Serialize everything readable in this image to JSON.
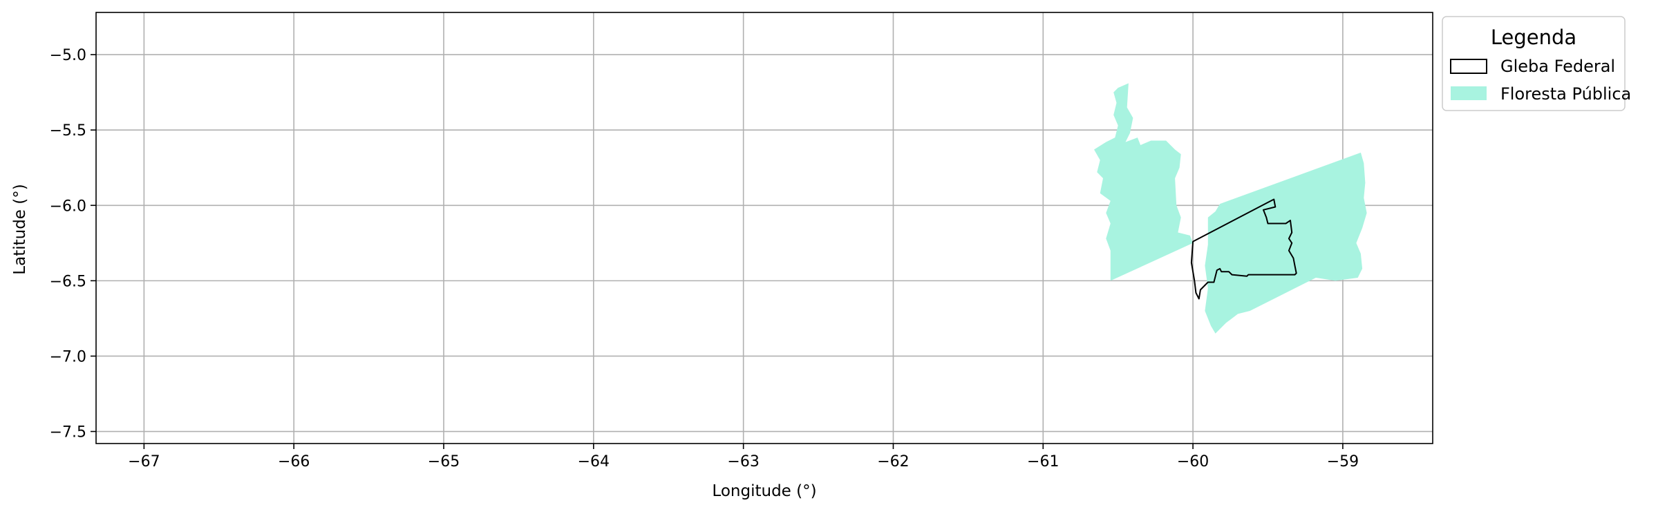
{
  "chart_data": {
    "type": "map",
    "xlabel": "Longitude (°)",
    "ylabel": "Latitude (°)",
    "xlim": [
      -67.32,
      -58.4
    ],
    "ylim": [
      -7.58,
      -4.72
    ],
    "x_ticks": [
      -67,
      -66,
      -65,
      -64,
      -63,
      -62,
      -61,
      -60,
      -59
    ],
    "y_ticks": [
      -5.0,
      -5.5,
      -6.0,
      -6.5,
      -7.0,
      -7.5
    ],
    "x_tick_labels": [
      "−67",
      "−66",
      "−65",
      "−64",
      "−63",
      "−62",
      "−61",
      "−60",
      "−59"
    ],
    "y_tick_labels": [
      "−5.0",
      "−5.5",
      "−6.0",
      "−6.5",
      "−7.0",
      "−7.5"
    ],
    "grid": true,
    "legend": {
      "title": "Legenda",
      "placement": "outside-upper-right",
      "entries": [
        {
          "label": "Gleba Federal",
          "style": "outline",
          "color": "#000000"
        },
        {
          "label": "Floresta Pública",
          "style": "fill",
          "color": "#a8f3e0"
        }
      ]
    },
    "layers": [
      {
        "name": "Floresta Pública",
        "fill": "#a8f3e0",
        "polygons": [
          [
            [
              -60.55,
              -6.5
            ],
            [
              -60.55,
              -6.3
            ],
            [
              -60.58,
              -6.22
            ],
            [
              -60.55,
              -6.12
            ],
            [
              -60.58,
              -6.05
            ],
            [
              -60.55,
              -5.97
            ],
            [
              -60.62,
              -5.92
            ],
            [
              -60.6,
              -5.82
            ],
            [
              -60.64,
              -5.78
            ],
            [
              -60.62,
              -5.7
            ],
            [
              -60.66,
              -5.63
            ],
            [
              -60.58,
              -5.58
            ],
            [
              -60.52,
              -5.55
            ],
            [
              -60.5,
              -5.47
            ],
            [
              -60.53,
              -5.4
            ],
            [
              -60.51,
              -5.32
            ],
            [
              -60.53,
              -5.25
            ],
            [
              -60.5,
              -5.22
            ],
            [
              -60.43,
              -5.19
            ],
            [
              -60.44,
              -5.35
            ],
            [
              -60.4,
              -5.42
            ],
            [
              -60.42,
              -5.52
            ],
            [
              -60.45,
              -5.58
            ],
            [
              -60.37,
              -5.55
            ],
            [
              -60.35,
              -5.6
            ],
            [
              -60.28,
              -5.57
            ],
            [
              -60.18,
              -5.57
            ],
            [
              -60.12,
              -5.63
            ],
            [
              -60.08,
              -5.66
            ],
            [
              -60.09,
              -5.75
            ],
            [
              -60.12,
              -5.82
            ],
            [
              -60.11,
              -6.0
            ],
            [
              -60.08,
              -6.08
            ],
            [
              -60.1,
              -6.18
            ],
            [
              -60.02,
              -6.2
            ],
            [
              -60.0,
              -6.25
            ],
            [
              -60.55,
              -6.5
            ]
          ],
          [
            [
              -59.9,
              -6.26
            ],
            [
              -59.9,
              -6.08
            ],
            [
              -59.85,
              -6.04
            ],
            [
              -59.82,
              -5.99
            ],
            [
              -58.88,
              -5.65
            ],
            [
              -58.86,
              -5.72
            ],
            [
              -58.85,
              -5.85
            ],
            [
              -58.86,
              -5.95
            ],
            [
              -58.84,
              -6.05
            ],
            [
              -58.87,
              -6.15
            ],
            [
              -58.91,
              -6.25
            ],
            [
              -58.88,
              -6.32
            ],
            [
              -58.87,
              -6.42
            ],
            [
              -58.9,
              -6.48
            ],
            [
              -59.05,
              -6.5
            ],
            [
              -59.18,
              -6.48
            ],
            [
              -59.62,
              -6.7
            ],
            [
              -59.7,
              -6.72
            ],
            [
              -59.78,
              -6.78
            ],
            [
              -59.85,
              -6.85
            ],
            [
              -59.88,
              -6.8
            ],
            [
              -59.92,
              -6.7
            ],
            [
              -59.9,
              -6.55
            ],
            [
              -59.92,
              -6.4
            ],
            [
              -59.9,
              -6.26
            ]
          ]
        ]
      },
      {
        "name": "Gleba Federal",
        "stroke": "#000000",
        "polygons": [
          [
            [
              -60.0,
              -6.24
            ],
            [
              -59.48,
              -5.97
            ],
            [
              -59.46,
              -5.96
            ],
            [
              -59.45,
              -6.01
            ],
            [
              -59.53,
              -6.03
            ],
            [
              -59.51,
              -6.08
            ],
            [
              -59.5,
              -6.12
            ],
            [
              -59.38,
              -6.12
            ],
            [
              -59.35,
              -6.1
            ],
            [
              -59.34,
              -6.18
            ],
            [
              -59.36,
              -6.22
            ],
            [
              -59.34,
              -6.25
            ],
            [
              -59.36,
              -6.3
            ],
            [
              -59.33,
              -6.35
            ],
            [
              -59.32,
              -6.4
            ],
            [
              -59.31,
              -6.45
            ],
            [
              -59.32,
              -6.46
            ],
            [
              -59.63,
              -6.46
            ],
            [
              -59.64,
              -6.47
            ],
            [
              -59.74,
              -6.46
            ],
            [
              -59.76,
              -6.44
            ],
            [
              -59.81,
              -6.44
            ],
            [
              -59.82,
              -6.42
            ],
            [
              -59.84,
              -6.43
            ],
            [
              -59.86,
              -6.51
            ],
            [
              -59.9,
              -6.51
            ],
            [
              -59.95,
              -6.56
            ],
            [
              -59.96,
              -6.62
            ],
            [
              -59.98,
              -6.58
            ],
            [
              -59.99,
              -6.5
            ],
            [
              -60.01,
              -6.38
            ],
            [
              -60.0,
              -6.24
            ]
          ]
        ]
      }
    ]
  }
}
